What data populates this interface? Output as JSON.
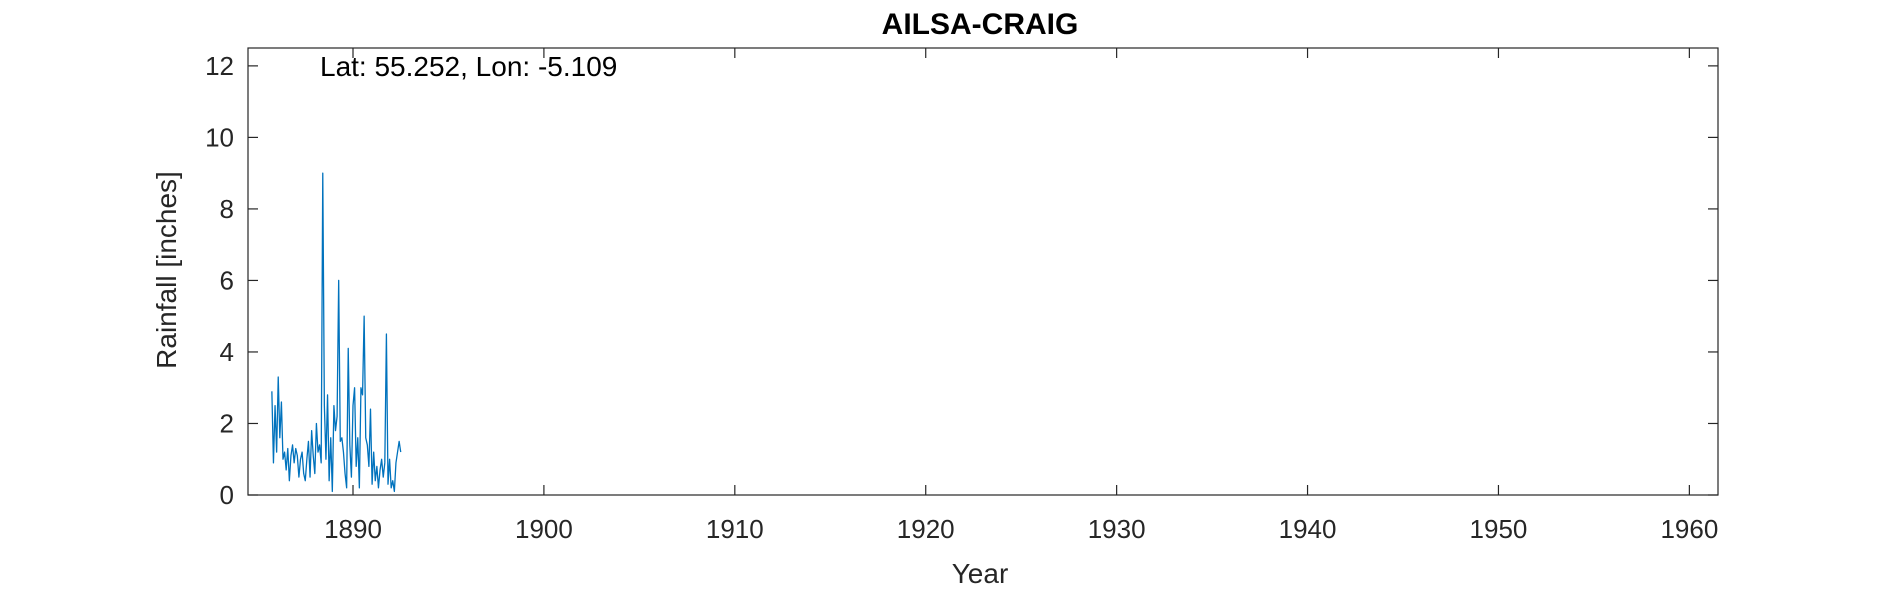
{
  "chart_data": {
    "type": "line",
    "title": "AILSA-CRAIG",
    "xlabel": "Year",
    "ylabel": "Rainfall [inches]",
    "annotation": "Lat: 55.252, Lon: -5.109",
    "xlim": [
      1884.5,
      1961.5
    ],
    "ylim": [
      0,
      12.5
    ],
    "xticks": [
      1890,
      1900,
      1910,
      1920,
      1930,
      1940,
      1950,
      1960
    ],
    "yticks": [
      0,
      2,
      4,
      6,
      8,
      10,
      12
    ],
    "grid": false,
    "line_color": "#0072BD",
    "series": [
      {
        "x_start": 1885.75,
        "step": 0.0833333,
        "values": [
          2.9,
          0.9,
          2.5,
          1.2,
          3.3,
          1.6,
          2.6,
          1.0,
          1.2,
          0.7,
          1.3,
          0.4,
          1.1,
          1.4,
          0.9,
          1.3,
          1.1,
          0.5,
          1.0,
          1.2,
          0.6,
          0.4,
          1.0,
          1.5,
          0.5,
          1.8,
          1.1,
          0.6,
          2.0,
          1.2,
          1.4,
          0.9,
          9.0,
          2.5,
          1.0,
          2.8,
          0.4,
          1.6,
          0.1,
          2.5,
          1.8,
          2.2,
          6.0,
          1.5,
          1.6,
          1.2,
          0.6,
          0.2,
          4.1,
          1.4,
          0.5,
          2.5,
          3.0,
          0.8,
          1.6,
          0.2,
          3.0,
          2.8,
          5.0,
          1.6,
          1.4,
          0.8,
          2.4,
          0.3,
          1.2,
          0.4,
          0.8,
          0.2,
          0.7,
          1.0,
          0.5,
          0.9,
          4.5,
          0.3,
          1.0,
          0.2,
          0.4,
          0.1,
          0.9,
          1.2,
          1.5,
          1.2,
          null,
          null,
          null,
          null,
          null,
          null,
          null,
          null,
          null,
          null,
          null,
          null,
          null,
          null,
          null,
          null,
          null,
          null,
          null,
          null,
          null,
          null,
          null,
          null,
          null,
          null,
          null,
          null,
          null,
          null,
          null,
          null,
          null,
          null,
          null,
          null,
          null,
          null,
          null,
          null,
          null,
          null,
          null,
          null,
          null,
          null,
          null,
          null,
          null,
          null,
          null,
          null,
          null,
          null,
          null,
          null,
          null,
          null
        ]
      }
    ]
  }
}
